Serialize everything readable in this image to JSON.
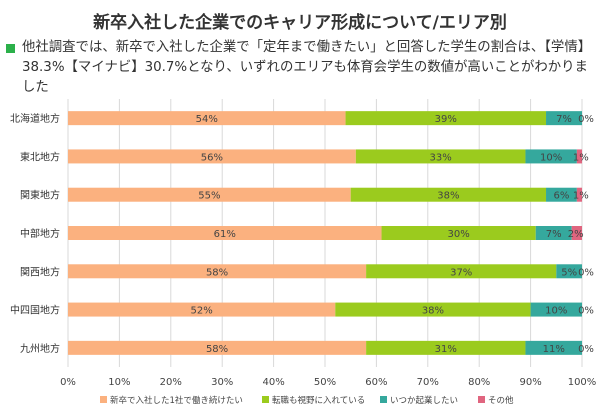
{
  "title": "新卒入社した企業でのキャリア形成について/エリア別",
  "subtitle_line1": "他社調査では、新卒で入社した企業で「定年まで働きたい」と回答した学生の割合は、【学情】",
  "subtitle_line2": "38.3%【マイナビ】30.7%となり、いずれのエリアも体育会学生の数値が高いことがわかりました",
  "chart_data": {
    "type": "bar",
    "orientation": "horizontal",
    "stacked": true,
    "categories": [
      "北海道地方",
      "東北地方",
      "関東地方",
      "中部地方",
      "関西地方",
      "中四国地方",
      "九州地方"
    ],
    "series": [
      {
        "name": "新卒で入社した1社で働き続けたい",
        "color": "#FBB17F",
        "values": [
          54,
          56,
          55,
          61,
          58,
          52,
          58
        ]
      },
      {
        "name": "転職も視野に入れている",
        "color": "#9BCB1E",
        "values": [
          39,
          33,
          38,
          30,
          37,
          38,
          31
        ]
      },
      {
        "name": "いつか起業したい",
        "color": "#35A89D",
        "values": [
          7,
          10,
          6,
          7,
          5,
          10,
          11
        ]
      },
      {
        "name": "その他",
        "color": "#E0657F",
        "values": [
          0,
          1,
          1,
          2,
          0,
          0,
          0
        ]
      }
    ],
    "xlim": [
      0,
      100
    ],
    "xticks": [
      "0%",
      "10%",
      "20%",
      "30%",
      "40%",
      "50%",
      "60%",
      "70%",
      "80%",
      "90%",
      "100%"
    ],
    "grid": true,
    "legend_position": "bottom"
  }
}
